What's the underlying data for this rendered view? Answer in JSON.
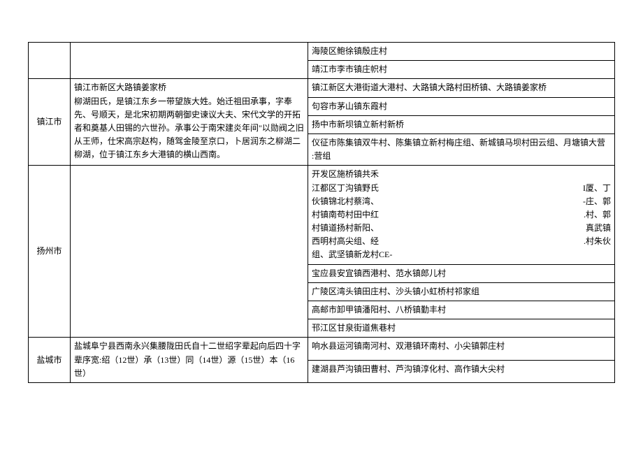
{
  "table": {
    "rows": [
      {
        "city": "",
        "desc": "",
        "villages": [
          "海陵区鲍徐镇殷庄村",
          "靖江市李市镇庄帜村"
        ]
      },
      {
        "city": "镇江市",
        "desc": "镇江市新区大路镇姜家桥\n柳湖田氏，是镇江东乡一带望族大姓。始迁祖田承事，字奉先、号顺天，是北宋初期两朝御史谏议大夫、宋代文学的开拓者和奠基人田锡的六世孙。承事公于南宋建炎年间\"以勋阀之旧从王师，仕宋高宗赵构，随驾金陵至京口，卜居润东之柳湖二柳湖，位于镇江东乡大港镇的横山西南。",
        "villages": [
          "镇江新区大港街道大港村、大路镇大路村田桥镇、大路镇姜家桥",
          "句容市茅山镇东霞村",
          "扬中市新坝镇立新村新桥",
          "仪征市陈集镇双牛村、陈集镇立新村梅庄组、新城镇马坝村田云组、月塘镇大营　　　　　　　　　　　　　　　　　　　:营组"
        ]
      },
      {
        "city": "扬州市",
        "desc": "",
        "villages_multi": [
          {
            "left": "开发区施桥镇共禾",
            "right": ""
          },
          {
            "left": "江都区丁沟镇野氏",
            "right": "I厦、丁"
          },
          {
            "left": "伙镇锦北村蔡湾、",
            "right": "-庄、郭"
          },
          {
            "left": "村镇南苟村田中红",
            "right": ".村、郭"
          },
          {
            "left": "村镇道扬村新阳、",
            "right": "真武镇"
          },
          {
            "left": "西明村高尖组、经",
            "right": ".村朱伙"
          },
          {
            "left": "组、武坚镇新龙村CE-",
            "right": ""
          }
        ],
        "villages": [
          "宝应县安宜镇西港村、范水镇郎儿村",
          "广陵区湾头镇田庄村、沙头镇小虹桥村祁家组",
          "高邮市卸甲镇潘阳村、八桥镇勤丰村",
          "邗江区甘泉街道焦巷村"
        ]
      },
      {
        "city": "盐城市",
        "desc": "盐城阜宁县西南永兴集腰陇田氏自十二世绍字辈起向后四十字辈序宽:绍（12世）承（13世）同（14世）源（15世）本（16世）",
        "villages": [
          "响水县运河镇南河村、双港镇环南村、小尖镇郭庄村",
          "建湖县芦沟镇田曹村、芦沟镇淳化村、高作镇大尖村"
        ]
      }
    ]
  }
}
